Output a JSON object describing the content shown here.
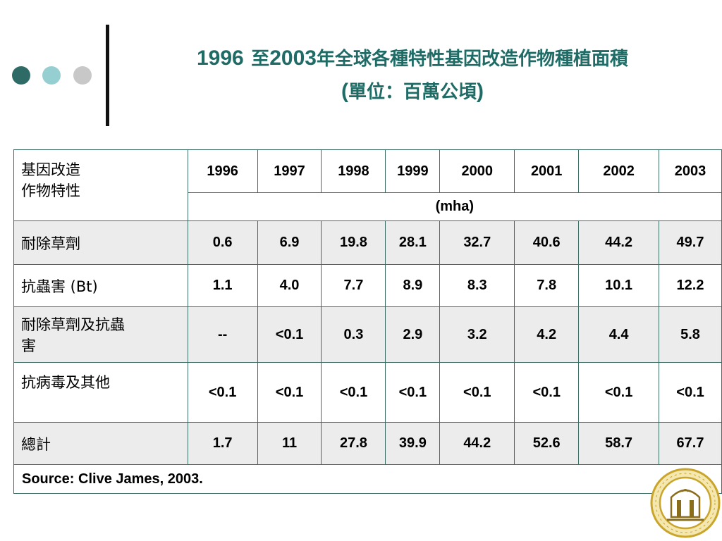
{
  "title": {
    "line1_year_start": "1996",
    "line1_to": "至",
    "line1_year_end": "2003",
    "line1_rest": "年全球各種特性基因改造作物種植面積",
    "line2_open": "(",
    "line2_text": "單位：百萬公頃",
    "line2_close": ")"
  },
  "table": {
    "header_label": [
      "基因改造",
      "作物特性"
    ],
    "years": [
      "1996",
      "1997",
      "1998",
      "1999",
      "2000",
      "2001",
      "2002",
      "2003"
    ],
    "unit": "(mha)",
    "rows": [
      {
        "label": [
          "耐除草劑"
        ],
        "values": [
          "0.6",
          "6.9",
          "19.8",
          "28.1",
          "32.7",
          "40.6",
          "44.2",
          "49.7"
        ]
      },
      {
        "label": [
          "抗蟲害 (Bt)"
        ],
        "values": [
          "1.1",
          "4.0",
          "7.7",
          "8.9",
          "8.3",
          "7.8",
          "10.1",
          "12.2"
        ]
      },
      {
        "label": [
          "耐除草劑及抗蟲",
          "害"
        ],
        "values": [
          "--",
          "<0.1",
          "0.3",
          "2.9",
          "3.2",
          "4.2",
          "4.4",
          "5.8"
        ]
      },
      {
        "label": [
          "抗病毒及其他"
        ],
        "values": [
          "<0.1",
          "<0.1",
          "<0.1",
          "<0.1",
          "<0.1",
          "<0.1",
          "<0.1",
          "<0.1"
        ]
      },
      {
        "label": [
          "總計"
        ],
        "values": [
          "1.7",
          "11",
          "27.8",
          "39.9",
          "44.2",
          "52.6",
          "58.7",
          "67.7"
        ]
      }
    ],
    "source": "Source: Clive James, 2003."
  },
  "colors": {
    "title": "#1f6b66",
    "dot1": "#2f6b66",
    "dot2": "#96cfd2",
    "dot3": "#c8c8c8",
    "border": "#3d6e66",
    "row_shade": "#ececec",
    "seal": "#c9a52b"
  },
  "icons": {
    "seal": "university-seal-icon"
  }
}
